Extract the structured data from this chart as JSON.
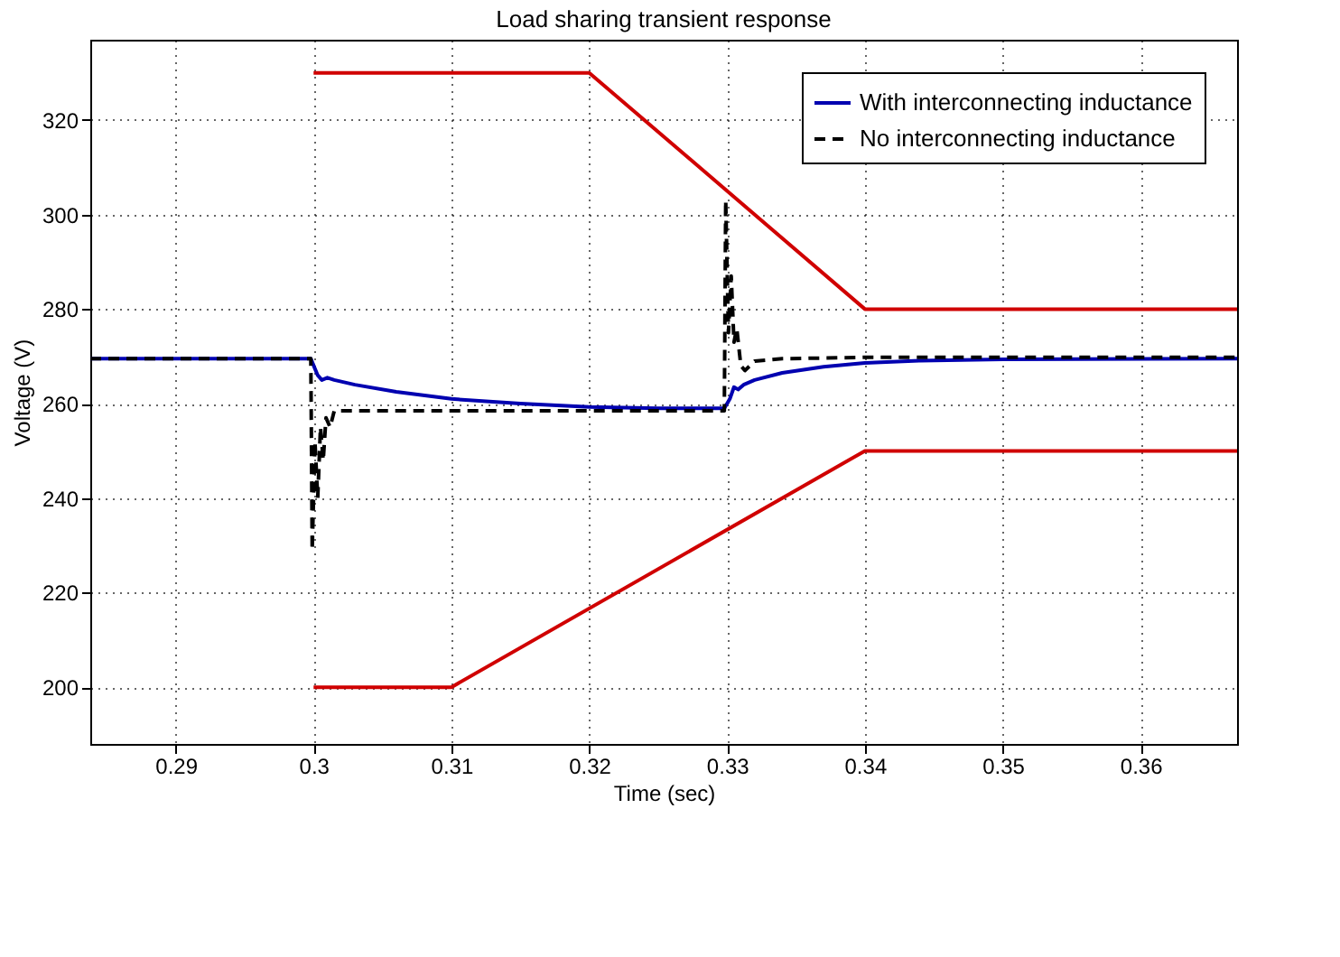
{
  "chart_data": {
    "type": "line",
    "title": "Load sharing transient response",
    "xlabel": "Time (sec)",
    "ylabel": "Voltage (V)",
    "xlim": [
      0.2838,
      0.367
    ],
    "xticks": [
      0.29,
      0.3,
      0.31,
      0.32,
      0.33,
      0.34,
      0.35,
      0.36
    ],
    "ylim": [
      188,
      337
    ],
    "yticks": [
      200,
      220,
      240,
      260,
      280,
      300,
      320
    ],
    "grid": true,
    "legend": "top right",
    "marker": "none",
    "series": [
      {
        "name": "With interconnecting inductance",
        "color": "#0000b0",
        "line_style": "solid",
        "x": [
          0.2838,
          0.2998,
          0.3003,
          0.3006,
          0.301,
          0.3015,
          0.303,
          0.306,
          0.31,
          0.315,
          0.32,
          0.325,
          0.3298,
          0.3302,
          0.3305,
          0.3308,
          0.3312,
          0.332,
          0.334,
          0.337,
          0.34,
          0.344,
          0.35,
          0.367
        ],
        "values": [
          269.5,
          269.5,
          266,
          265,
          265.5,
          265,
          264,
          262.5,
          261,
          260,
          259.3,
          259,
          259,
          261,
          263.5,
          263,
          264,
          265,
          266.5,
          267.8,
          268.6,
          269.1,
          269.4,
          269.5
        ]
      },
      {
        "name": "No interconnecting inductance",
        "color": "#000000",
        "line_style": "dashed",
        "x": [
          0.2838,
          0.2998,
          0.2999,
          0.3001,
          0.3003,
          0.3005,
          0.3007,
          0.3009,
          0.3012,
          0.3015,
          0.31,
          0.32,
          0.3298,
          0.3299,
          0.3301,
          0.3303,
          0.3305,
          0.3307,
          0.331,
          0.3313,
          0.332,
          0.334,
          0.34,
          0.367
        ],
        "values": [
          269.5,
          269.5,
          229,
          252,
          240,
          255,
          248,
          257,
          255,
          258.5,
          258.5,
          258.5,
          258.5,
          303,
          275,
          287,
          273,
          276,
          268,
          267,
          269,
          269.5,
          269.8,
          269.8
        ]
      },
      {
        "color": "#d00000",
        "line_style": "solid",
        "x": [
          0.3,
          0.32,
          0.34,
          0.367
        ],
        "values": [
          330,
          330,
          280,
          280
        ]
      },
      {
        "color": "#d00000",
        "line_style": "solid",
        "x": [
          0.3,
          0.31,
          0.34,
          0.367
        ],
        "values": [
          200,
          200,
          250,
          250
        ]
      }
    ]
  }
}
